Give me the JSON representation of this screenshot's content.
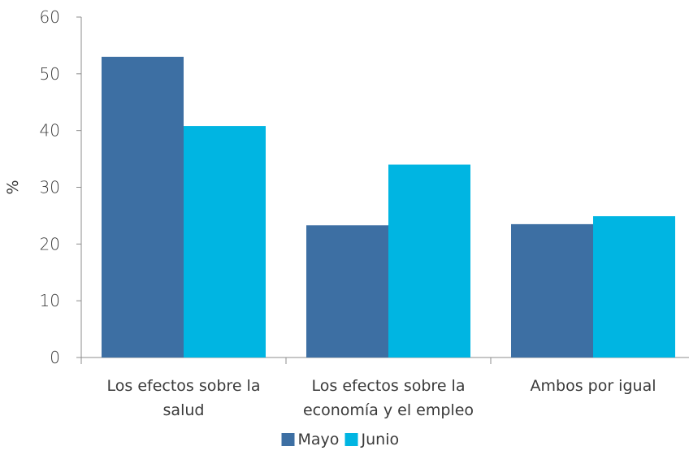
{
  "chart_data": {
    "type": "bar",
    "title": "",
    "xlabel": "",
    "ylabel": "%",
    "ylim": [
      0,
      60
    ],
    "yticks": [
      0,
      10,
      20,
      30,
      40,
      50,
      60
    ],
    "grid": false,
    "legend_position": "bottom",
    "categories": [
      [
        "Los efectos sobre la",
        "salud"
      ],
      [
        "Los efectos sobre la",
        "economía y el empleo"
      ],
      [
        "Ambos por igual"
      ]
    ],
    "series": [
      {
        "name": "Mayo",
        "color": "#3d6fa3",
        "values": [
          53,
          23.3,
          23.5
        ]
      },
      {
        "name": "Junio",
        "color": "#00b5e2",
        "values": [
          40.8,
          34,
          24.9
        ]
      }
    ]
  }
}
